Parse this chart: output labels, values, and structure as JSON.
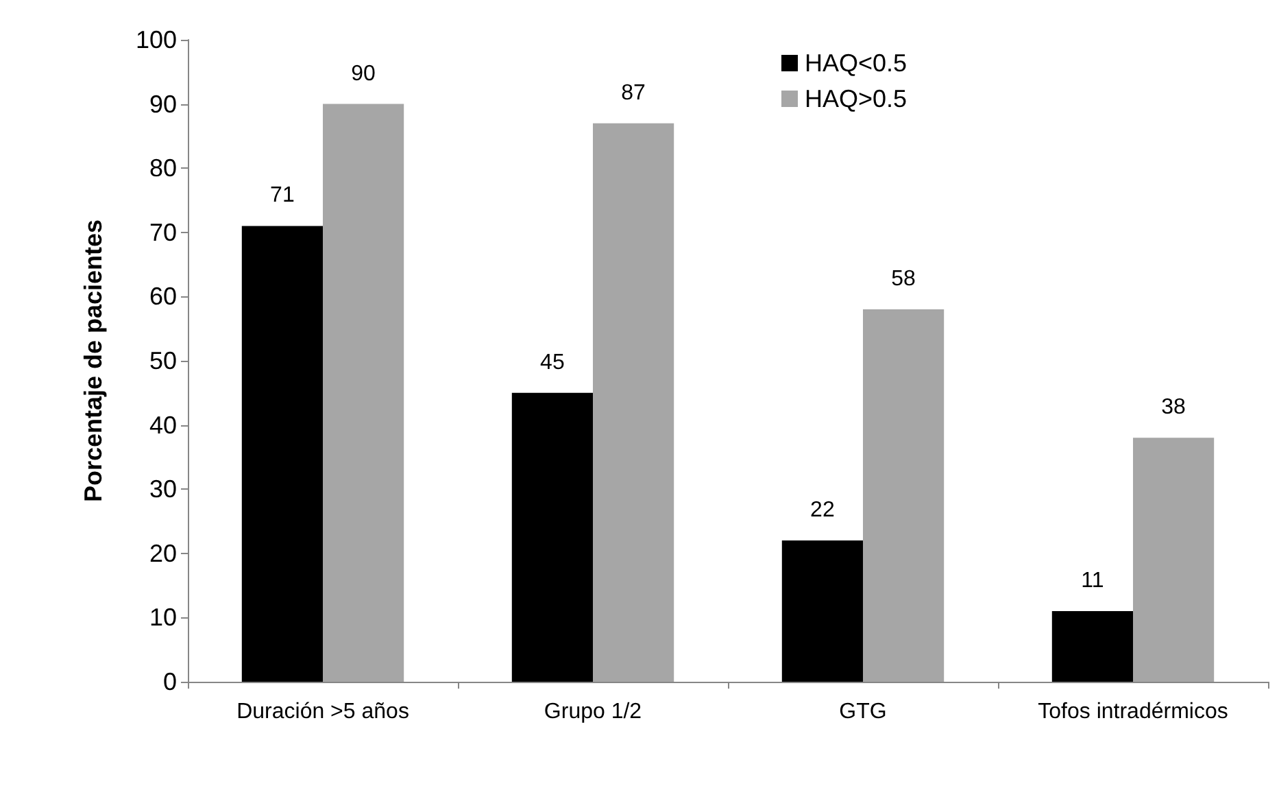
{
  "chart_data": {
    "type": "bar",
    "ylabel": "Porcentaje de pacientes",
    "categories": [
      "Duración >5 años",
      "Grupo 1/2",
      "GTG",
      "Tofos intradérmicos"
    ],
    "series": [
      {
        "name": "HAQ<0.5",
        "color": "#000000",
        "values": [
          71,
          45,
          22,
          11
        ]
      },
      {
        "name": "HAQ>0.5",
        "color": "#a6a6a6",
        "values": [
          90,
          87,
          58,
          38
        ]
      }
    ],
    "ylim": [
      0,
      100
    ],
    "yticks": [
      0,
      10,
      20,
      30,
      40,
      50,
      60,
      70,
      80,
      90,
      100
    ],
    "grid": false,
    "legend": "top right",
    "data_labels": true
  }
}
